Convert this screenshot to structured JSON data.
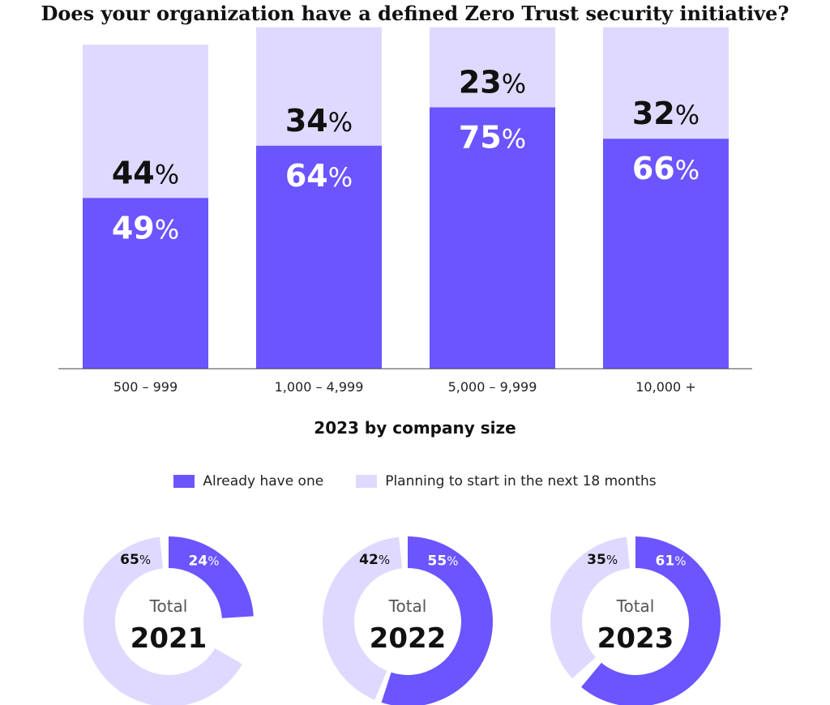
{
  "title": "Does your organization have a defined Zero Trust security initiative?",
  "colors": {
    "already": "#6a55ff",
    "planning": "#dfd9ff",
    "dark_text": "#111111",
    "light_text": "#ffffff"
  },
  "chart_data": [
    {
      "type": "bar",
      "stacked": true,
      "title": "",
      "xlabel": "2023 by company size",
      "ylabel": "",
      "categories": [
        "500 – 999",
        "1,000 – 4,999",
        "5,000 – 9,999",
        "10,000 +"
      ],
      "ylim": [
        0,
        100
      ],
      "series": [
        {
          "name": "Already have one",
          "values": [
            49,
            64,
            75,
            66
          ]
        },
        {
          "name": "Planning to start in the next 18 months",
          "values": [
            44,
            34,
            23,
            32
          ]
        }
      ],
      "legend": "bottom"
    },
    {
      "type": "pie",
      "donut": true,
      "charts": [
        {
          "center_label": "Total",
          "year": "2021",
          "already": 24,
          "planning": 65
        },
        {
          "center_label": "Total",
          "year": "2022",
          "already": 55,
          "planning": 42
        },
        {
          "center_label": "Total",
          "year": "2023",
          "already": 61,
          "planning": 35
        }
      ]
    }
  ],
  "legend": {
    "already": "Already have one",
    "planning": "Planning to start in the next 18 months"
  }
}
